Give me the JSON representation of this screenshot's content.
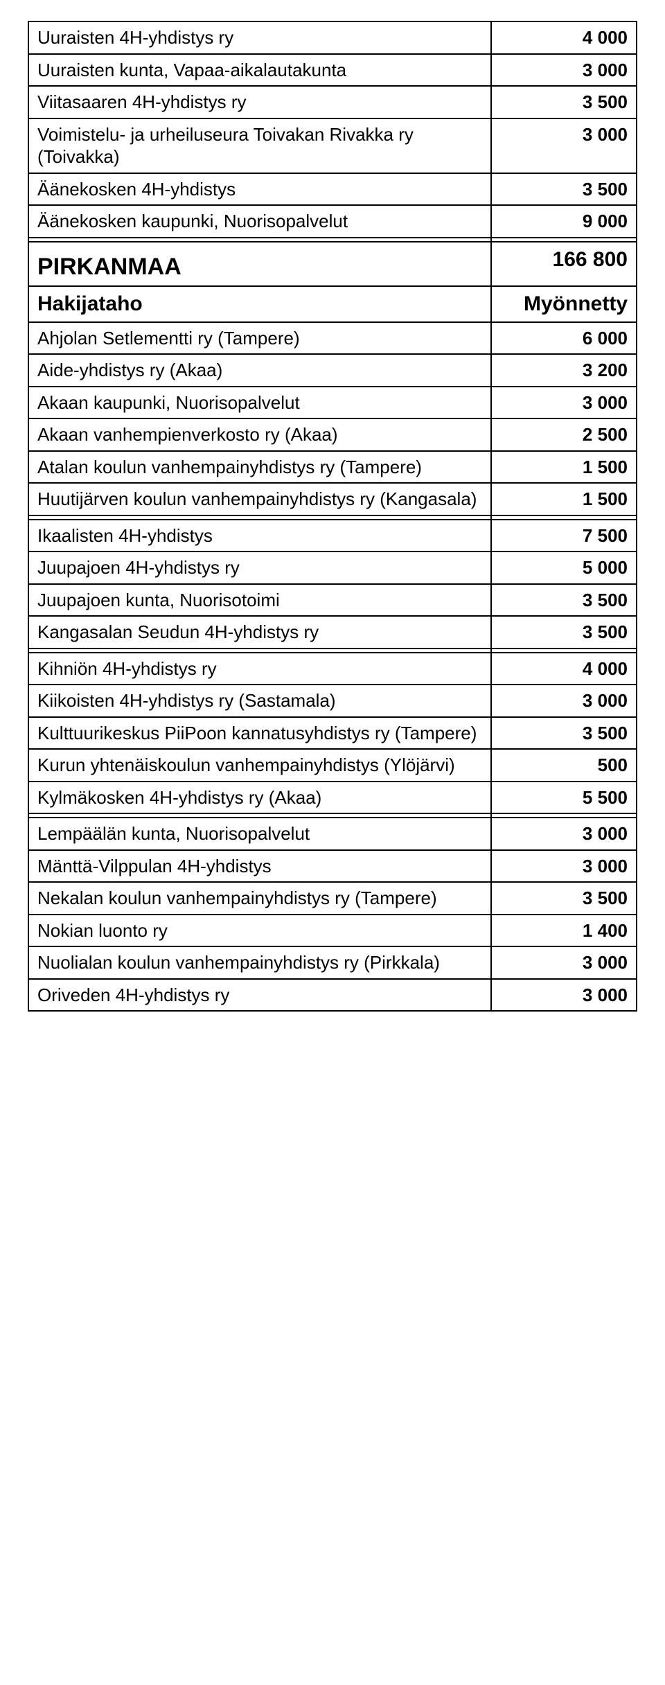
{
  "colors": {
    "background": "#ffffff",
    "text": "#000000",
    "border": "#000000"
  },
  "fonts": {
    "family": "Arial",
    "cell_size": 26,
    "heading_size": 34,
    "header_size": 30
  },
  "top_rows": [
    {
      "name": "Uuraisten 4H-yhdistys ry",
      "value": "4 000"
    },
    {
      "name": "Uuraisten kunta, Vapaa-aikalautakunta",
      "value": "3 000"
    },
    {
      "name": "Viitasaaren 4H-yhdistys ry",
      "value": "3 500"
    },
    {
      "name": "Voimistelu- ja urheiluseura Toivakan Rivakka ry  (Toivakka)",
      "value": "3 000"
    },
    {
      "name": "Äänekosken 4H-yhdistys",
      "value": "3 500"
    },
    {
      "name": "Äänekosken kaupunki, Nuorisopalvelut",
      "value": "9 000"
    }
  ],
  "section": {
    "title": "PIRKANMAA",
    "total": "166 800",
    "header_name": "Hakijataho",
    "header_value": "Myönnetty"
  },
  "groups": [
    [
      {
        "name": "Ahjolan Setlementti ry  (Tampere)",
        "value": "6 000"
      },
      {
        "name": "Aide-yhdistys ry  (Akaa)",
        "value": "3 200"
      },
      {
        "name": "Akaan kaupunki, Nuorisopalvelut",
        "value": "3 000"
      },
      {
        "name": "Akaan vanhempienverkosto ry (Akaa)",
        "value": "2 500"
      },
      {
        "name": "Atalan koulun vanhempainyhdistys ry  (Tampere)",
        "value": "1 500"
      },
      {
        "name": "Huutijärven koulun vanhempainyhdistys ry  (Kangasala)",
        "value": "1 500"
      }
    ],
    [
      {
        "name": "Ikaalisten 4H-yhdistys",
        "value": "7 500"
      },
      {
        "name": "Juupajoen 4H-yhdistys ry",
        "value": "5 000"
      },
      {
        "name": "Juupajoen kunta, Nuorisotoimi",
        "value": "3 500"
      },
      {
        "name": "Kangasalan Seudun 4H-yhdistys ry",
        "value": "3 500"
      }
    ],
    [
      {
        "name": "Kihniön 4H-yhdistys ry",
        "value": "4 000"
      },
      {
        "name": "Kiikoisten 4H-yhdistys ry (Sastamala)",
        "value": "3 000"
      },
      {
        "name": "Kulttuurikeskus PiiPoon kannatusyhdistys ry  (Tampere)",
        "value": "3 500"
      },
      {
        "name": "Kurun yhtenäiskoulun vanhempainyhdistys  (Ylöjärvi)",
        "value": "500"
      },
      {
        "name": "Kylmäkosken 4H-yhdistys ry  (Akaa)",
        "value": "5 500"
      }
    ],
    [
      {
        "name": "Lempäälän kunta, Nuorisopalvelut",
        "value": "3 000"
      },
      {
        "name": "Mänttä-Vilppulan 4H-yhdistys",
        "value": "3 000"
      },
      {
        "name": "Nekalan koulun vanhempainyhdistys ry  (Tampere)",
        "value": "3 500"
      },
      {
        "name": "Nokian luonto ry",
        "value": "1 400"
      },
      {
        "name": "Nuolialan koulun vanhempainyhdistys ry  (Pirkkala)",
        "value": "3 000"
      },
      {
        "name": "Oriveden 4H-yhdistys ry",
        "value": "3 000"
      }
    ]
  ]
}
